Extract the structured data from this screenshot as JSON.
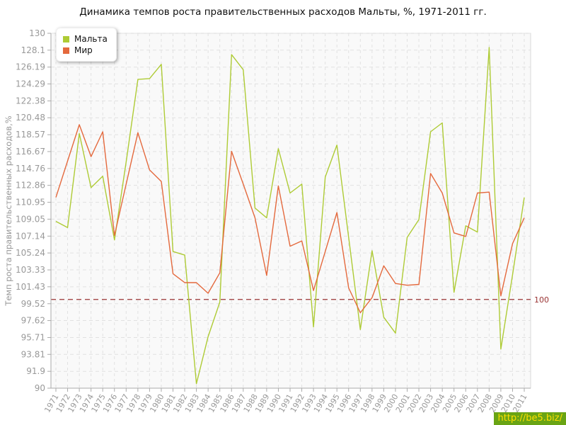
{
  "watermark": "http://be5.biz/",
  "colors": {
    "grid": "#e1e1e1",
    "axis": "#aaaaaa",
    "plot_border": "#d9d9d9",
    "plot_bg": "#f9f9f9",
    "tick_text": "#999999",
    "watermark_bg": "#69a414",
    "watermark_text": "#ffdf00"
  },
  "chart_data": {
    "type": "line",
    "title": "Динамика темпов роста правительственных расходов Мальты, %, 1971-2011 гг.",
    "xlabel": "",
    "ylabel": "Темп роста правительственных расходов,%",
    "ylim": [
      90,
      130
    ],
    "grid": true,
    "legend_position": "top-left",
    "x": [
      1971,
      1972,
      1973,
      1974,
      1975,
      1976,
      1977,
      1978,
      1979,
      1980,
      1981,
      1982,
      1983,
      1984,
      1985,
      1986,
      1987,
      1988,
      1989,
      1990,
      1991,
      1992,
      1993,
      1994,
      1995,
      1996,
      1997,
      1998,
      1999,
      2000,
      2001,
      2002,
      2003,
      2004,
      2005,
      2006,
      2007,
      2008,
      2009,
      2010,
      2011
    ],
    "y_ticks": [
      "130",
      "128.1",
      "126.19",
      "124.29",
      "122.38",
      "120.48",
      "118.57",
      "116.67",
      "114.76",
      "112.86",
      "110.95",
      "109.05",
      "107.14",
      "105.24",
      "103.33",
      "101.43",
      "99.52",
      "97.62",
      "95.71",
      "93.81",
      "91.9",
      "90"
    ],
    "series": [
      {
        "name": "Мальта",
        "color": "#aecb35",
        "values": [
          108.8,
          108.1,
          118.7,
          112.6,
          113.9,
          106.7,
          115.5,
          124.8,
          124.9,
          126.5,
          105.4,
          105.0,
          90.5,
          95.8,
          99.7,
          127.6,
          125.9,
          110.3,
          109.2,
          117.0,
          112.0,
          113.0,
          96.9,
          113.8,
          117.4,
          107.0,
          96.6,
          105.5,
          98.0,
          96.2,
          107.0,
          109.0,
          118.9,
          119.9,
          100.8,
          108.3,
          107.6,
          128.4,
          94.4,
          102.8,
          111.5
        ]
      },
      {
        "name": "Мир",
        "color": "#e4693d",
        "values": [
          111.5,
          115.6,
          119.7,
          116.1,
          118.9,
          107.2,
          113.0,
          118.8,
          114.6,
          113.3,
          102.9,
          101.9,
          101.9,
          100.7,
          103.0,
          116.7,
          113.0,
          109.2,
          102.7,
          112.8,
          106.0,
          106.6,
          101.0,
          105.4,
          109.8,
          101.3,
          98.5,
          100.2,
          103.8,
          101.8,
          101.6,
          101.7,
          114.2,
          112.0,
          107.5,
          107.1,
          112.0,
          112.1,
          100.4,
          106.3,
          109.2
        ]
      }
    ],
    "reference_line": {
      "value": 100,
      "label": "100",
      "color": "#993333",
      "style": "dashed"
    }
  }
}
